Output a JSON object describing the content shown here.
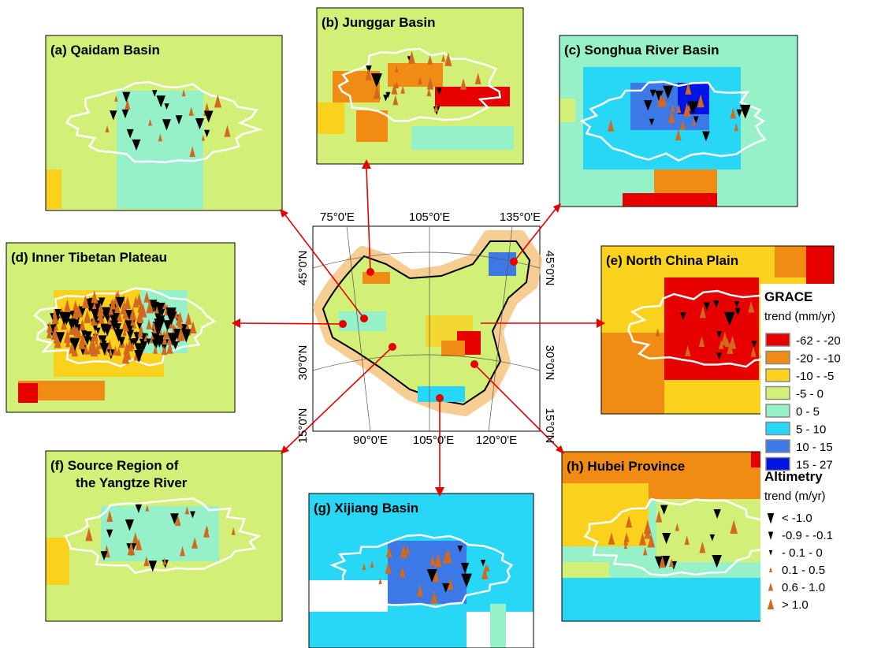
{
  "panels": [
    {
      "title": [
        "(a) Qaidam Basin"
      ]
    },
    {
      "title": [
        "(b) Junggar Basin"
      ]
    },
    {
      "title": [
        "(c) Songhua River Basin"
      ]
    },
    {
      "title": [
        "(d) Inner Tibetan Plateau"
      ]
    },
    {
      "title": [
        "(e) North China Plain"
      ]
    },
    {
      "title": [
        "(f) Source Region of",
        "the Yangtze River"
      ]
    },
    {
      "title": [
        "(g) Xijiang Basin"
      ]
    },
    {
      "title": [
        "(h) Hubei Province"
      ]
    }
  ],
  "map": {
    "top_labels": [
      "75°0'E",
      "105°0'E",
      "135°0'E"
    ],
    "bottom_labels": [
      "90°0'E",
      "105°0'E",
      "120°0'E"
    ],
    "left_labels": [
      "45°0'N",
      "30°0'N",
      "15°0'N"
    ],
    "right_labels": [
      "45°0'N",
      "30°0'N",
      "15°0'N"
    ]
  },
  "legend": {
    "grace_title": "GRACE",
    "grace_unit": "trend (mm/yr)",
    "grace_classes": [
      {
        "label": "-62 - -20",
        "color": "#e60000"
      },
      {
        "label": "-20 - -10",
        "color": "#f08c14"
      },
      {
        "label": "-10 - -5",
        "color": "#fad21e"
      },
      {
        "label": "-5 - 0",
        "color": "#d2f078"
      },
      {
        "label": "0 - 5",
        "color": "#96f0c8"
      },
      {
        "label": "5 - 10",
        "color": "#28d7f5"
      },
      {
        "label": "10 - 15",
        "color": "#3c78e6"
      },
      {
        "label": "15 - 27",
        "color": "#0014e6"
      }
    ],
    "altimetry_title": "Altimetry",
    "altimetry_unit": "trend (m/yr)",
    "altimetry_classes": [
      {
        "label": "< -1.0",
        "color": "#000000"
      },
      {
        "label": "-0.9 - -0.1",
        "color": "#000000"
      },
      {
        "label": "- 0.1 - 0",
        "color": "#000000"
      },
      {
        "label": "0.1 - 0.5",
        "color": "#d2691e"
      },
      {
        "label": "0.6 - 1.0",
        "color": "#d2691e"
      },
      {
        "label": "> 1.0",
        "color": "#d2691e"
      }
    ]
  }
}
